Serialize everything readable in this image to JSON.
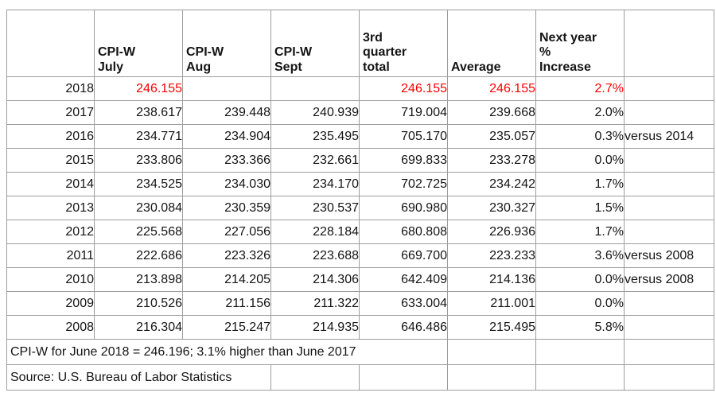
{
  "colors": {
    "highlight_red": "#fe0000",
    "grid_line": "#9d9d9d",
    "outer_border": "#868686",
    "text": "#141414",
    "background": "#ffffff"
  },
  "chart_data": {
    "type": "table",
    "columns": [
      "",
      "CPI-W\nJuly",
      "CPI-W\nAug",
      "CPI-W\nSept",
      "3rd\nquarter\ntotal",
      "Average",
      "Next year\n%\nIncrease",
      ""
    ],
    "rows": [
      [
        "2018",
        "246.155",
        "",
        "",
        "246.155",
        "246.155",
        "2.7%",
        ""
      ],
      [
        "2017",
        "238.617",
        "239.448",
        "240.939",
        "719.004",
        "239.668",
        "2.0%",
        ""
      ],
      [
        "2016",
        "234.771",
        "234.904",
        "235.495",
        "705.170",
        "235.057",
        "0.3%",
        "versus 2014"
      ],
      [
        "2015",
        "233.806",
        "233.366",
        "232.661",
        "699.833",
        "233.278",
        "0.0%",
        ""
      ],
      [
        "2014",
        "234.525",
        "234.030",
        "234.170",
        "702.725",
        "234.242",
        "1.7%",
        ""
      ],
      [
        "2013",
        "230.084",
        "230.359",
        "230.537",
        "690.980",
        "230.327",
        "1.5%",
        ""
      ],
      [
        "2012",
        "225.568",
        "227.056",
        "228.184",
        "680.808",
        "226.936",
        "1.7%",
        ""
      ],
      [
        "2011",
        "222.686",
        "223.326",
        "223.688",
        "669.700",
        "223.233",
        "3.6%",
        "versus 2008"
      ],
      [
        "2010",
        "213.898",
        "214.205",
        "214.306",
        "642.409",
        "214.136",
        "0.0%",
        "versus 2008"
      ],
      [
        "2009",
        "210.526",
        "211.156",
        "211.322",
        "633.004",
        "211.001",
        "0.0%",
        ""
      ],
      [
        "2008",
        "216.304",
        "215.247",
        "214.935",
        "646.486",
        "215.495",
        "5.8%",
        ""
      ]
    ],
    "highlight_row": 0,
    "footnotes": [
      "CPI-W for June 2018 = 246.196; 3.1% higher than June 2017",
      "Source: U.S. Bureau of Labor Statistics"
    ],
    "layout_hints": {
      "grid": "on",
      "header_alignment": "bottom-left",
      "value_alignment": "right",
      "note_alignment": "left",
      "highlight_style": "2018 value cells rendered in red"
    }
  }
}
